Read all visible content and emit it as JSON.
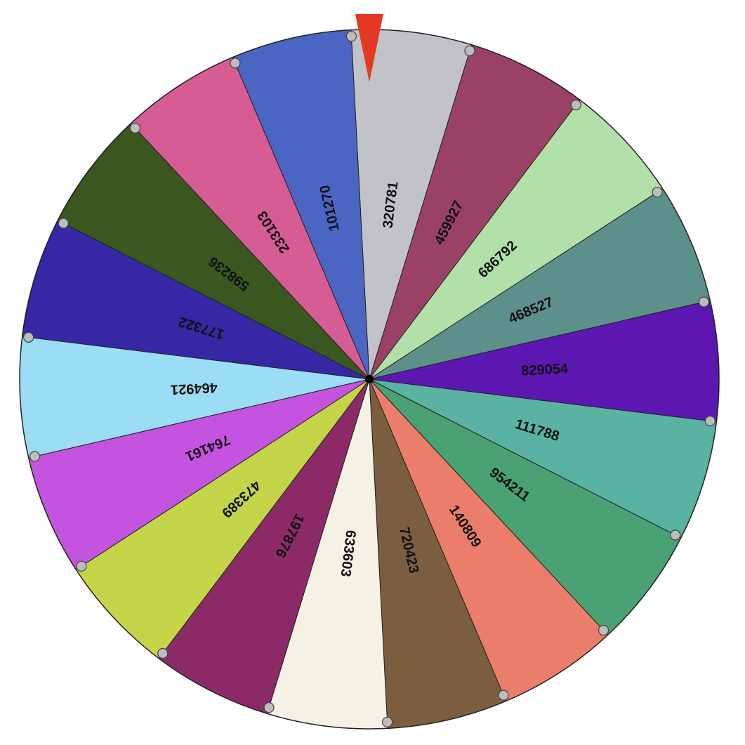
{
  "wheel": {
    "segments": [
      {
        "label": "320781",
        "color": "#C1C3C8"
      },
      {
        "label": "459927",
        "color": "#9A4266"
      },
      {
        "label": "686792",
        "color": "#B2E0A9"
      },
      {
        "label": "468527",
        "color": "#5E908B"
      },
      {
        "label": "829054",
        "color": "#5C17B0"
      },
      {
        "label": "111788",
        "color": "#59B2A2"
      },
      {
        "label": "954211",
        "color": "#4AA173"
      },
      {
        "label": "140809",
        "color": "#EB7E6A"
      },
      {
        "label": "720423",
        "color": "#7B5E40"
      },
      {
        "label": "633603",
        "color": "#F6F1E5"
      },
      {
        "label": "197876",
        "color": "#8C2A67"
      },
      {
        "label": "473389",
        "color": "#C5D54A"
      },
      {
        "label": "764161",
        "color": "#C453E0"
      },
      {
        "label": "464921",
        "color": "#9ADDF4"
      },
      {
        "label": "177322",
        "color": "#3627A4"
      },
      {
        "label": "598236",
        "color": "#3A5720"
      },
      {
        "label": "233103",
        "color": "#D65C94"
      },
      {
        "label": "101270",
        "color": "#4B66C2"
      }
    ],
    "pointer_color": "#E53824",
    "outline_color": "#222222",
    "peg_color": "#BDBDBD"
  }
}
